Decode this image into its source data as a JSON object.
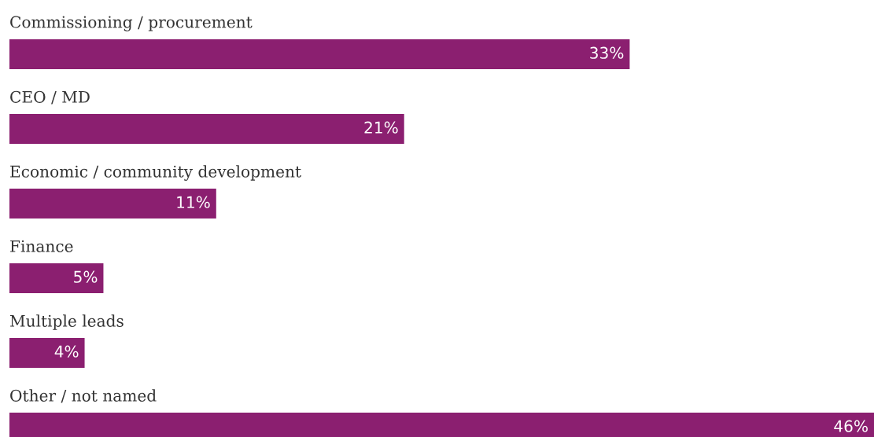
{
  "chart_data": {
    "type": "bar",
    "orientation": "horizontal",
    "categories": [
      "Commissioning / procurement",
      "CEO / MD",
      "Economic / community development",
      "Finance",
      "Multiple leads",
      "Other / not named"
    ],
    "values": [
      33,
      21,
      11,
      5,
      4,
      46
    ],
    "value_labels": [
      "33%",
      "21%",
      "11%",
      "5%",
      "4%",
      "46%"
    ],
    "color": "#8b1f70"
  }
}
